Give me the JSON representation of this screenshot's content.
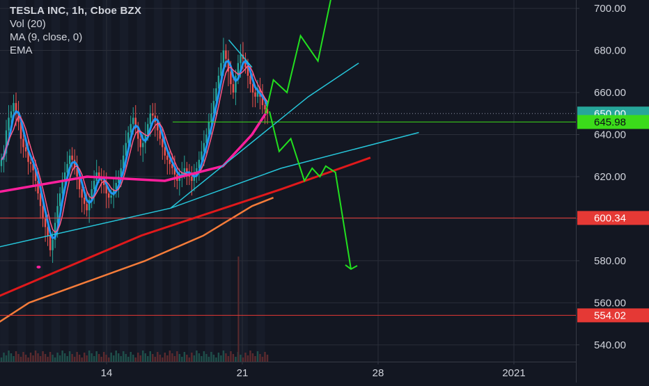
{
  "legend": {
    "title": "TESLA INC, 1h, Cboe BZX",
    "volume": "Vol (20)",
    "ma": "MA (9, close, 0)",
    "ema": "EMA"
  },
  "colors": {
    "background": "#131722",
    "grid": "#2a2e39",
    "axis_text": "#d1d4dc",
    "candle_up": "#26a69a",
    "candle_down": "#ef5350",
    "ema_fast": "#2196f3",
    "ma": "#ff5a8a",
    "ema_slow": "#ff1f9c",
    "ema_long": "#f57c3a",
    "trendline": "#26c6da",
    "red_trendline": "#e0191b",
    "projection": "#22e01f",
    "level_red": "#e53935",
    "level_green": "#3bdb1a",
    "last_price": "#26a69a"
  },
  "chart_data": {
    "type": "candlestick",
    "title": "TESLA INC, 1h, Cboe BZX",
    "ylim": [
      532,
      704
    ],
    "y_ticks": [
      "700.00",
      "680.00",
      "660.00",
      "640.00",
      "620.00",
      "600.00",
      "580.00",
      "560.00",
      "540.00"
    ],
    "x_ticks": [
      "14",
      "21",
      "28",
      "2021"
    ],
    "x_tick_days": [
      14,
      21,
      28,
      35
    ],
    "price_labels": [
      {
        "text": "650.00",
        "value": 650.0,
        "kind": "last"
      },
      {
        "text": "645.98",
        "value": 645.98,
        "kind": "green"
      },
      {
        "text": "600.34",
        "value": 600.34,
        "kind": "red"
      },
      {
        "text": "554.02",
        "value": 554.02,
        "kind": "red"
      }
    ],
    "horizontal_levels": [
      {
        "value": 645.98,
        "color": "green"
      },
      {
        "value": 600.34,
        "color": "red"
      },
      {
        "value": 554.02,
        "color": "red"
      }
    ],
    "last_price_dotted": 650.0,
    "candle_closes": [
      628,
      631,
      642,
      648,
      651,
      655,
      650,
      646,
      638,
      634,
      632,
      627,
      626,
      623,
      618,
      612,
      606,
      600,
      596,
      592,
      585,
      590,
      598,
      606,
      612,
      618,
      622,
      626,
      630,
      628,
      624,
      620,
      614,
      610,
      607,
      604,
      609,
      614,
      618,
      622,
      620,
      618,
      616,
      612,
      610,
      611,
      614,
      617,
      620,
      624,
      630,
      636,
      641,
      645,
      648,
      643,
      638,
      634,
      636,
      640,
      645,
      650,
      649,
      646,
      642,
      638,
      634,
      630,
      628,
      626,
      624,
      621,
      618,
      620,
      622,
      624,
      622,
      620,
      618,
      620,
      624,
      628,
      632,
      636,
      640,
      646,
      650,
      656,
      662,
      668,
      674,
      680,
      676,
      670,
      664,
      660,
      668,
      674,
      678,
      676,
      672,
      668,
      664,
      660,
      658,
      662,
      658,
      654,
      652,
      650
    ],
    "series": [
      {
        "name": "MA (9, close, 0)",
        "role": "ma"
      },
      {
        "name": "EMA",
        "role": "ema"
      }
    ],
    "ema_slow_line": [
      [
        8,
        612
      ],
      [
        13,
        620
      ],
      [
        17,
        618
      ],
      [
        20,
        625
      ],
      [
        21.5,
        640
      ],
      [
        22.2,
        650
      ]
    ],
    "ema_long_line": [
      [
        8,
        548
      ],
      [
        10,
        560
      ],
      [
        13,
        570
      ],
      [
        16,
        580
      ],
      [
        19,
        592
      ],
      [
        21.5,
        606
      ],
      [
        22.6,
        610
      ]
    ],
    "volume_spike": {
      "day": 20.8,
      "value_fraction": 0.42
    },
    "trendlines": [
      {
        "color": "cyan",
        "points": [
          [
            8.2,
            586
          ],
          [
            17.3,
            605
          ],
          [
            23.0,
            624
          ],
          [
            30.1,
            641
          ]
        ]
      },
      {
        "color": "cyan",
        "points": [
          [
            17.3,
            605
          ],
          [
            24.4,
            658
          ],
          [
            27.0,
            674
          ]
        ]
      },
      {
        "color": "cyan",
        "points": [
          [
            20.3,
            685
          ],
          [
            21.5,
            672
          ]
        ]
      },
      {
        "color": "red",
        "points": [
          [
            7.9,
            561
          ],
          [
            15.8,
            592
          ],
          [
            23.0,
            614
          ],
          [
            27.6,
            629
          ]
        ]
      }
    ],
    "projection_up": [
      [
        22.2,
        650
      ],
      [
        22.6,
        666
      ],
      [
        23.3,
        660
      ],
      [
        24.0,
        687
      ],
      [
        24.9,
        675
      ],
      [
        25.6,
        706
      ]
    ],
    "projection_down": [
      [
        22.4,
        651
      ],
      [
        22.9,
        632
      ],
      [
        23.5,
        638
      ],
      [
        24.2,
        618
      ],
      [
        24.6,
        624
      ],
      [
        25.0,
        620
      ],
      [
        25.3,
        625
      ],
      [
        25.8,
        622
      ],
      [
        26.6,
        576
      ]
    ]
  }
}
